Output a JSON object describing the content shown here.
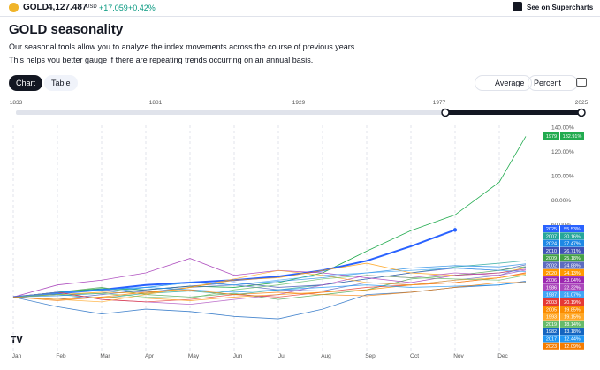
{
  "header": {
    "symbol": "GOLD",
    "price": "4,127.487",
    "currency": "USD",
    "change": "+17.059",
    "change_pct": "+0.42%",
    "link": "See on Supercharts"
  },
  "title": "GOLD seasonality",
  "description": [
    "Our seasonal tools allow you to analyze the index movements across the course of previous years.",
    "This helps you better gauge if there are repeating trends occurring on an annual basis."
  ],
  "tabs": [
    "Chart",
    "Table"
  ],
  "controls": {
    "average": "Average",
    "units": "Percent"
  },
  "slider": {
    "labels": [
      "1833",
      "1881",
      "1929",
      "1977",
      "2025"
    ]
  },
  "chart_data": {
    "type": "line",
    "x": [
      0,
      1,
      2,
      3,
      4,
      5,
      6,
      7,
      8,
      9,
      10,
      11,
      11.6
    ],
    "xlim": [
      -0.1,
      11.7
    ],
    "xticks": [
      {
        "value": 0,
        "label": "Jan"
      },
      {
        "value": 1,
        "label": "Feb"
      },
      {
        "value": 2,
        "label": "Mar"
      },
      {
        "value": 3,
        "label": "Apr"
      },
      {
        "value": 4,
        "label": "May"
      },
      {
        "value": 5,
        "label": "Jun"
      },
      {
        "value": 6,
        "label": "Jul"
      },
      {
        "value": 7,
        "label": "Aug"
      },
      {
        "value": 8,
        "label": "Sep"
      },
      {
        "value": 9,
        "label": "Oct"
      },
      {
        "value": 10,
        "label": "Nov"
      },
      {
        "value": 11,
        "label": "Dec"
      }
    ],
    "ylim": [
      -45,
      142
    ],
    "yticks": [
      {
        "value": 60,
        "label": "60.00%"
      },
      {
        "value": 80,
        "label": "80.00%"
      },
      {
        "value": 100,
        "label": "100.00%"
      },
      {
        "value": 120,
        "label": "120.00%"
      },
      {
        "value": 140,
        "label": "140.00%"
      }
    ],
    "series": [
      {
        "name": "1979",
        "color": "#22ab4f",
        "values": [
          0,
          4,
          7,
          6,
          9,
          8,
          12,
          20,
          38,
          55,
          68,
          95,
          132.91
        ],
        "end_label": "132.91%"
      },
      {
        "name": "2025",
        "color": "#2962ff",
        "values": [
          0,
          3,
          6,
          10,
          12,
          14,
          17,
          22,
          30,
          42,
          55.53,
          null,
          null
        ],
        "end_label": "55.53%"
      },
      {
        "name": "2007",
        "color": "#26a69a",
        "values": [
          0,
          2,
          -1,
          3,
          5,
          2,
          6,
          10,
          15,
          20,
          25,
          28,
          30.16
        ],
        "end_label": "30.16%"
      },
      {
        "name": "2024",
        "color": "#1e88e5",
        "values": [
          0,
          1,
          3,
          8,
          12,
          10,
          13,
          16,
          20,
          24,
          26,
          25,
          27.47
        ],
        "end_label": "27.47%"
      },
      {
        "name": "2010",
        "color": "#3f51b5",
        "values": [
          0,
          -2,
          2,
          6,
          9,
          12,
          8,
          10,
          15,
          20,
          24,
          22,
          26.71
        ],
        "end_label": "26.71%"
      },
      {
        "name": "2009",
        "color": "#43a047",
        "values": [
          0,
          4,
          8,
          2,
          0,
          3,
          -2,
          2,
          6,
          15,
          18,
          22,
          25.18
        ],
        "end_label": "25.18%"
      },
      {
        "name": "2002",
        "color": "#5c6bc0",
        "values": [
          0,
          3,
          6,
          4,
          8,
          10,
          6,
          5,
          12,
          10,
          14,
          18,
          24.88
        ],
        "end_label": "24.88%"
      },
      {
        "name": "2020",
        "color": "#ff9800",
        "values": [
          0,
          2,
          4,
          3,
          8,
          14,
          16,
          22,
          28,
          20,
          18,
          20,
          24.13
        ],
        "end_label": "24.13%"
      },
      {
        "name": "2006",
        "color": "#9c27b0",
        "values": [
          0,
          10,
          14,
          20,
          32,
          18,
          22,
          20,
          16,
          12,
          18,
          20,
          23.04
        ],
        "end_label": "23.04%"
      },
      {
        "name": "1986",
        "color": "#ab47bc",
        "values": [
          0,
          4,
          -2,
          -4,
          -6,
          -2,
          2,
          10,
          18,
          16,
          20,
          18,
          22.32
        ],
        "end_label": "22.32%"
      },
      {
        "name": "1987",
        "color": "#42a5f5",
        "values": [
          0,
          3,
          6,
          8,
          12,
          10,
          14,
          18,
          20,
          22,
          24,
          22,
          21.07
        ],
        "end_label": "21.07%"
      },
      {
        "name": "2003",
        "color": "#e53935",
        "values": [
          0,
          4,
          -2,
          -4,
          -2,
          2,
          0,
          4,
          8,
          10,
          12,
          16,
          20.19
        ],
        "end_label": "20.19%"
      },
      {
        "name": "2005",
        "color": "#fb8c00",
        "values": [
          0,
          -2,
          0,
          -1,
          -3,
          0,
          2,
          4,
          6,
          10,
          12,
          16,
          19.85
        ],
        "end_label": "19.85%"
      },
      {
        "name": "1993",
        "color": "#ffa726",
        "values": [
          0,
          -2,
          -4,
          2,
          8,
          15,
          22,
          18,
          12,
          10,
          14,
          16,
          19.15
        ],
        "end_label": "19.15%"
      },
      {
        "name": "2019",
        "color": "#66bb6a",
        "values": [
          0,
          2,
          3,
          0,
          -1,
          6,
          10,
          15,
          18,
          16,
          15,
          14,
          18.14
        ],
        "end_label": "18.14%"
      },
      {
        "name": "1982",
        "color": "#1565c0",
        "values": [
          0,
          -8,
          -14,
          -10,
          -12,
          -16,
          -18,
          -10,
          2,
          4,
          8,
          10,
          13.18
        ],
        "end_label": "13.18%"
      },
      {
        "name": "2017",
        "color": "#2196f3",
        "values": [
          0,
          4,
          6,
          8,
          6,
          4,
          6,
          8,
          10,
          8,
          9,
          10,
          12.44
        ],
        "end_label": "12.44%"
      },
      {
        "name": "2023",
        "color": "#f57c00",
        "values": [
          0,
          -3,
          0,
          4,
          6,
          2,
          4,
          2,
          1,
          4,
          8,
          12,
          12.09
        ],
        "end_label": "12.09%"
      }
    ],
    "grid": true
  }
}
